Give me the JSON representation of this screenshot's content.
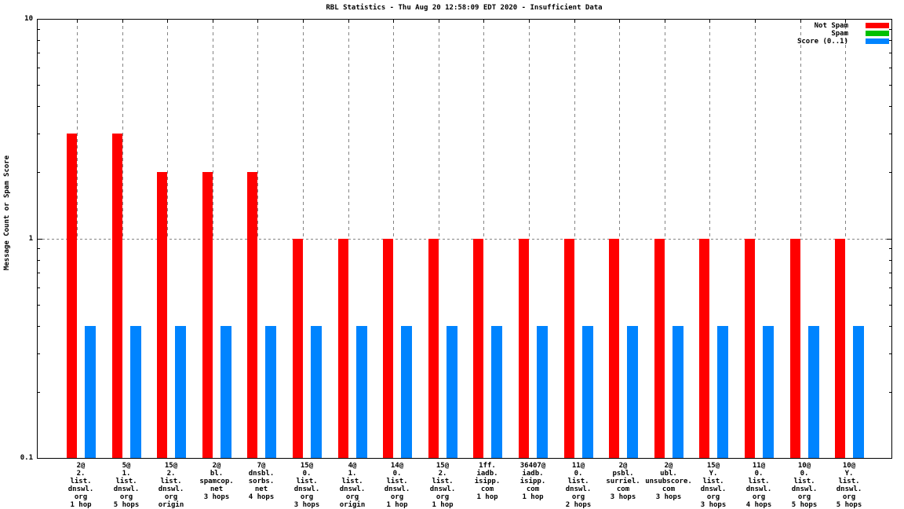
{
  "chart_data": {
    "type": "bar",
    "title": "RBL Statistics - Thu Aug 20 12:58:09 EDT 2020 - Insufficient Data",
    "ylabel": "Message Count or Spam Score",
    "yscale": "log",
    "ylim": [
      0.1,
      10
    ],
    "yticks": [
      {
        "label": "10",
        "value": 10
      },
      {
        "label": "1",
        "value": 1
      },
      {
        "label": "0.1",
        "value": 0.1
      }
    ],
    "grid": {
      "vertical_dashed_at_each_category": true,
      "horizontal_dotted_at": 1
    },
    "legend_position": "top-right-inside",
    "categories": [
      [
        "2@",
        "2.",
        "list.",
        "dnswl.",
        "org",
        "1 hop"
      ],
      [
        "5@",
        "1.",
        "list.",
        "dnswl.",
        "org",
        "5 hops"
      ],
      [
        "15@",
        "2.",
        "list.",
        "dnswl.",
        "org",
        "origin"
      ],
      [
        "2@",
        "bl.",
        "spamcop.",
        "net",
        "3 hops"
      ],
      [
        "7@",
        "dnsbl.",
        "sorbs.",
        "net",
        "4 hops"
      ],
      [
        "15@",
        "0.",
        "list.",
        "dnswl.",
        "org",
        "3 hops"
      ],
      [
        "4@",
        "1.",
        "list.",
        "dnswl.",
        "org",
        "origin"
      ],
      [
        "14@",
        "0.",
        "list.",
        "dnswl.",
        "org",
        "1 hop"
      ],
      [
        "15@",
        "2.",
        "list.",
        "dnswl.",
        "org",
        "1 hop"
      ],
      [
        "1ff.",
        "iadb.",
        "isipp.",
        "com",
        "1 hop"
      ],
      [
        "36407@",
        "iadb.",
        "isipp.",
        "com",
        "1 hop"
      ],
      [
        "11@",
        "0.",
        "list.",
        "dnswl.",
        "org",
        "2 hops"
      ],
      [
        "2@",
        "psbl.",
        "surriel.",
        "com",
        "3 hops"
      ],
      [
        "2@",
        "ubl.",
        "unsubscore.",
        "com",
        "3 hops"
      ],
      [
        "15@",
        "Y.",
        "list.",
        "dnswl.",
        "org",
        "3 hops"
      ],
      [
        "11@",
        "0.",
        "list.",
        "dnswl.",
        "org",
        "4 hops"
      ],
      [
        "10@",
        "0.",
        "list.",
        "dnswl.",
        "org",
        "5 hops"
      ],
      [
        "10@",
        "Y.",
        "list.",
        "dnswl.",
        "org",
        "5 hops"
      ]
    ],
    "series": [
      {
        "name": "Not Spam",
        "color": "#ff0000",
        "values": [
          3,
          3,
          2,
          2,
          2,
          1,
          1,
          1,
          1,
          1,
          1,
          1,
          1,
          1,
          1,
          1,
          1,
          1
        ]
      },
      {
        "name": "Spam",
        "color": "#00c000",
        "values": [
          0,
          0,
          0,
          0,
          0,
          0,
          0,
          0,
          0,
          0,
          0,
          0,
          0,
          0,
          0,
          0,
          0,
          0
        ]
      },
      {
        "name": "Score (0..1)",
        "color": "#0084ff",
        "values": [
          0.4,
          0.4,
          0.4,
          0.4,
          0.4,
          0.4,
          0.4,
          0.4,
          0.4,
          0.4,
          0.4,
          0.4,
          0.4,
          0.4,
          0.4,
          0.4,
          0.4,
          0.4
        ]
      }
    ]
  }
}
